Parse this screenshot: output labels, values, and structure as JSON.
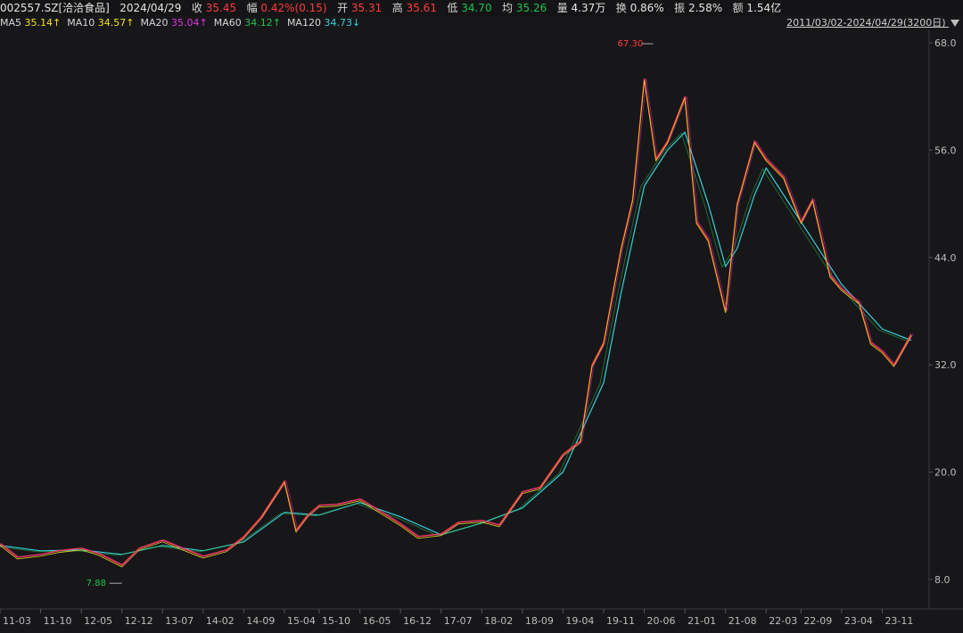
{
  "header": {
    "code": "002557.SZ[洽洽食品]",
    "date": "2024/04/29",
    "close_label": "收",
    "close": "35.45",
    "change_label": "幅",
    "change": "0.42%(0.15)",
    "open_label": "开",
    "open": "35.31",
    "high_label": "高",
    "high": "35.61",
    "low_label": "低",
    "low": "34.70",
    "avg_label": "均",
    "avg": "35.26",
    "volume_label": "量",
    "volume": "4.37万",
    "turnover_label": "换",
    "turnover": "0.86%",
    "amplitude_label": "振",
    "amplitude": "2.58%",
    "amount_label": "额",
    "amount": "1.54亿"
  },
  "ma": {
    "ma5_label": "MA5",
    "ma5": "35.14↑",
    "ma10_label": "MA10",
    "ma10": "34.57↑",
    "ma20_label": "MA20",
    "ma20": "35.04↑",
    "ma60_label": "MA60",
    "ma60": "34.12↑",
    "ma120_label": "MA120",
    "ma120": "34.73↓"
  },
  "range_label": "2011/03/02-2024/04/29(3200日)",
  "colors": {
    "bg": "#17171a",
    "up": "#ff3b3b",
    "down": "#1fc24a",
    "ma5": "#f2e21b",
    "ma10": "#e033e0",
    "ma20": "#27c34e",
    "ma60": "#38d0d8",
    "axis": "#3a3a3e"
  },
  "chart_data": {
    "type": "line",
    "title": "",
    "xlabel": "",
    "ylabel": "",
    "ylim": [
      6.5,
      68.5
    ],
    "yticks": [
      8.0,
      20.0,
      32.0,
      44.0,
      56.0,
      68.0
    ],
    "ytick_labels": [
      "8.0",
      "20.0",
      "32.0",
      "44.0",
      "56.0",
      "68.0"
    ],
    "xticks": [
      "11-03",
      "11-10",
      "12-05",
      "12-12",
      "13-07",
      "14-02",
      "14-09",
      "15-04",
      "15-10",
      "16-05",
      "16-12",
      "17-07",
      "18-02",
      "18-09",
      "19-04",
      "19-11",
      "20-06",
      "21-01",
      "21-08",
      "22-03",
      "22-09",
      "23-04",
      "23-11"
    ],
    "max_marker": {
      "label": "67.30",
      "value": 67.3,
      "date": "20-06"
    },
    "min_marker": {
      "label": "7.88",
      "value": 7.88,
      "date": "12-12"
    },
    "series": [
      {
        "x": [
          "11-03",
          "11-06",
          "11-10",
          "12-01",
          "12-05",
          "12-08",
          "12-12",
          "13-03",
          "13-07",
          "13-10",
          "14-02",
          "14-06",
          "14-09",
          "14-12",
          "15-04",
          "15-06",
          "15-08",
          "15-10",
          "16-01",
          "16-05",
          "16-08",
          "16-12",
          "17-03",
          "17-07",
          "17-10",
          "18-02",
          "18-05",
          "18-09",
          "18-12",
          "19-04",
          "19-07",
          "19-09",
          "19-11",
          "20-02",
          "20-04",
          "20-06",
          "20-08",
          "20-10",
          "21-01",
          "21-03",
          "21-05",
          "21-08",
          "21-10",
          "22-01",
          "22-03",
          "22-06",
          "22-09",
          "22-11",
          "23-02",
          "23-04",
          "23-07",
          "23-09",
          "23-11",
          "24-01",
          "24-04"
        ],
        "values": [
          12.0,
          10.5,
          10.8,
          11.2,
          11.5,
          10.9,
          9.6,
          11.5,
          12.4,
          11.6,
          10.6,
          11.3,
          12.8,
          15.0,
          19.0,
          13.5,
          15.2,
          16.3,
          16.4,
          17.0,
          15.8,
          14.2,
          12.8,
          13.1,
          14.4,
          14.6,
          14.1,
          17.8,
          18.3,
          22.0,
          23.5,
          32.0,
          34.5,
          45.0,
          50.5,
          64.0,
          55.0,
          57.0,
          62.0,
          48.0,
          46.0,
          38.0,
          50.0,
          57.0,
          55.0,
          53.0,
          48.0,
          50.5,
          42.0,
          40.5,
          39.0,
          34.5,
          33.5,
          32.0,
          35.45
        ]
      },
      {
        "x": [
          "11-03",
          "11-10",
          "12-05",
          "12-12",
          "13-07",
          "14-02",
          "14-09",
          "15-04",
          "15-10",
          "16-05",
          "16-12",
          "17-07",
          "18-02",
          "18-09",
          "19-04",
          "19-11",
          "20-02",
          "20-06",
          "20-10",
          "21-01",
          "21-05",
          "21-08",
          "21-10",
          "22-01",
          "22-03",
          "22-09",
          "23-04",
          "23-11",
          "24-04"
        ],
        "values": [
          11.8,
          11.2,
          11.3,
          10.8,
          11.8,
          11.2,
          12.2,
          15.5,
          15.2,
          16.6,
          15.0,
          13.0,
          14.3,
          16.0,
          20.0,
          30.0,
          40.0,
          52.0,
          56.0,
          58.0,
          50.0,
          43.0,
          45.0,
          51.0,
          54.0,
          48.0,
          41.0,
          36.0,
          34.73
        ]
      }
    ]
  }
}
